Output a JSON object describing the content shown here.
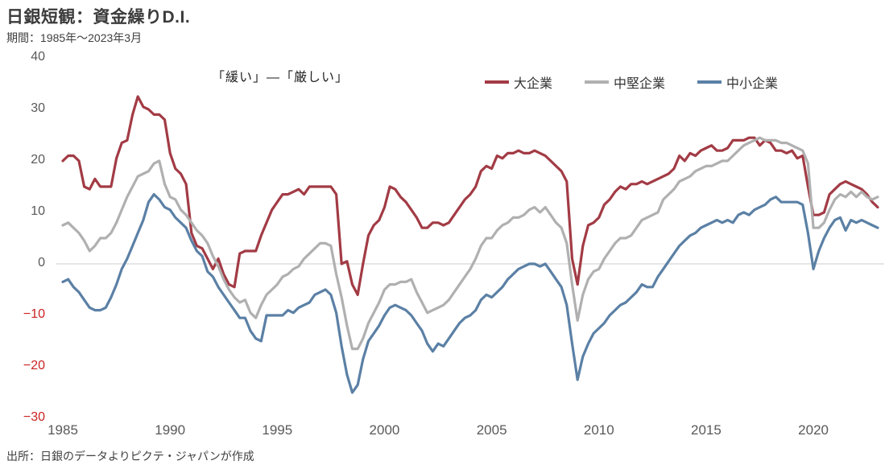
{
  "title": "日銀短観：資金繰りD.I.",
  "subtitle": "期間：1985年～2023年3月",
  "annotation": "「緩い」―「厳しい」",
  "source": "出所：日銀のデータよりピクテ・ジャパンが作成",
  "colors": {
    "large_enterprises": "#a23b45",
    "medium_enterprises": "#b0b0b0",
    "small_enterprises": "#5b80a5",
    "negative_tick": "#cc2222",
    "tick_text": "#595959",
    "zero_gridline": "#d8d8d8"
  },
  "chart_data": {
    "type": "line",
    "frequency": "quarterly",
    "x_start": "1985Q1",
    "x_end": "2023Q1",
    "ylim": [
      -30,
      40
    ],
    "ytick_values": [
      40,
      30,
      20,
      10,
      0,
      -10,
      -20,
      -30
    ],
    "xtick_labels": [
      "1985",
      "1990",
      "1995",
      "2000",
      "2005",
      "2010",
      "2015",
      "2020"
    ],
    "grid": "zero-line-only",
    "legend_position": "top-right",
    "series": [
      {
        "name": "大企業",
        "color": "#a23b45",
        "values": [
          20,
          21,
          21,
          20,
          15,
          14.5,
          16.5,
          15,
          15,
          15,
          20.5,
          23.5,
          24,
          29,
          32.5,
          30.5,
          30,
          29,
          29,
          28,
          21.5,
          18.5,
          17.5,
          15.5,
          6,
          3.5,
          3,
          1,
          -1,
          1,
          -2,
          -4,
          -4.5,
          2,
          2.5,
          2.5,
          2.5,
          5.5,
          8,
          10.5,
          12,
          13.5,
          13.5,
          14,
          14.5,
          13.5,
          15,
          15,
          15,
          15,
          15,
          13.5,
          0,
          0.5,
          -4,
          -6,
          0,
          5.5,
          7.5,
          8.5,
          11,
          15,
          14.5,
          13,
          12,
          10.5,
          9,
          7,
          7,
          8,
          8,
          7.5,
          8,
          9.5,
          11,
          12.5,
          13.5,
          15,
          18,
          19,
          18.5,
          21,
          20.5,
          21.5,
          21.5,
          22,
          21.5,
          21.5,
          22,
          21.5,
          21,
          20,
          19,
          18,
          16,
          1,
          -4,
          3.5,
          7.5,
          8,
          9,
          11.5,
          12.5,
          14,
          15,
          14.5,
          15.5,
          15.5,
          16,
          15.5,
          16,
          16.5,
          17,
          17.5,
          18.5,
          21,
          20,
          21.5,
          21,
          22,
          22.5,
          23,
          22,
          22,
          22.5,
          24,
          24,
          24,
          24.5,
          24.5,
          23,
          24,
          23.5,
          22,
          22,
          21.5,
          22,
          20.5,
          21,
          15,
          9.5,
          9.5,
          10,
          13.5,
          14.5,
          15.5,
          16,
          15.5,
          15,
          14.5,
          13.5,
          12,
          11
        ]
      },
      {
        "name": "中堅企業",
        "color": "#b0b0b0",
        "values": [
          7.5,
          8,
          7,
          6,
          4.5,
          2.5,
          3.5,
          5,
          5,
          6,
          8,
          10.5,
          13,
          15,
          17,
          17.5,
          18,
          19.5,
          20,
          15.5,
          13,
          12.5,
          10.5,
          9.5,
          8,
          6.5,
          5.5,
          4,
          1.5,
          -0.5,
          -3,
          -5,
          -6.5,
          -7.5,
          -7,
          -9.5,
          -10.5,
          -8,
          -6,
          -5,
          -4,
          -2.5,
          -2,
          -1,
          -0.5,
          1,
          2,
          3,
          4,
          4,
          3.5,
          -2,
          -6.5,
          -12,
          -16.5,
          -16.5,
          -14.5,
          -11.5,
          -9.5,
          -7.5,
          -5,
          -4,
          -4,
          -3.5,
          -3.5,
          -3,
          -5.5,
          -7.5,
          -9.5,
          -9,
          -8.5,
          -8,
          -7,
          -5.5,
          -4,
          -2.5,
          -1,
          1,
          3.5,
          5,
          5,
          6.5,
          7.5,
          8,
          9,
          9,
          9.5,
          10.5,
          11,
          10,
          11,
          9.5,
          8,
          7,
          4,
          -4,
          -11,
          -6,
          -3,
          -1.5,
          -1,
          1,
          2.5,
          4,
          5,
          5,
          5.5,
          7,
          8.5,
          9,
          9.5,
          10,
          12.5,
          13.5,
          14.5,
          16,
          16.5,
          17,
          18,
          18.5,
          19,
          19,
          19.5,
          20,
          20,
          21,
          22,
          23,
          23.5,
          24,
          24.5,
          24,
          24,
          24,
          23.5,
          23.5,
          23,
          22.5,
          22,
          19.5,
          7,
          7,
          8,
          10.5,
          12.5,
          13.5,
          13,
          14,
          13,
          14,
          13,
          12.5,
          13
        ]
      },
      {
        "name": "中小企業",
        "color": "#5b80a5",
        "values": [
          -3.5,
          -3,
          -4.5,
          -5.5,
          -7,
          -8.5,
          -9,
          -9,
          -8.5,
          -6.5,
          -4,
          -1,
          1,
          3.5,
          6,
          8.5,
          12,
          13.5,
          12.5,
          11,
          10.5,
          9,
          8,
          7,
          4.5,
          2.5,
          1.5,
          -1.5,
          -2.5,
          -4.5,
          -6,
          -7.5,
          -9,
          -10.5,
          -10.5,
          -13,
          -14.5,
          -15,
          -10,
          -10,
          -10,
          -10,
          -9,
          -9.5,
          -8.5,
          -8,
          -7.5,
          -6,
          -5.5,
          -5,
          -6,
          -9.5,
          -16,
          -21.5,
          -25,
          -23.5,
          -18.5,
          -15,
          -13.5,
          -12,
          -10,
          -8.5,
          -8,
          -8.5,
          -9,
          -10,
          -11.5,
          -13,
          -15.5,
          -17,
          -15.5,
          -16,
          -14.5,
          -13,
          -11.5,
          -10.5,
          -10,
          -9,
          -7,
          -6,
          -6.5,
          -5.5,
          -4.5,
          -3,
          -2,
          -1,
          -0.5,
          0,
          0,
          -0.5,
          0,
          -1.5,
          -3,
          -4.5,
          -8,
          -15.5,
          -22.5,
          -18,
          -15.5,
          -13.5,
          -12.5,
          -11.5,
          -10,
          -9,
          -8,
          -7.5,
          -6.5,
          -5.5,
          -4,
          -4.5,
          -4.5,
          -2.5,
          -1,
          0.5,
          2,
          3.5,
          4.5,
          5.5,
          6,
          7,
          7.5,
          8,
          8.5,
          8,
          8.5,
          8,
          9.5,
          10,
          9.5,
          10.5,
          11,
          11.5,
          12.5,
          13,
          12,
          12,
          12,
          12,
          11.5,
          6,
          -1,
          2.5,
          5,
          7,
          8.5,
          9,
          6.5,
          8.5,
          8,
          8.5,
          8,
          7.5,
          7
        ]
      }
    ]
  }
}
